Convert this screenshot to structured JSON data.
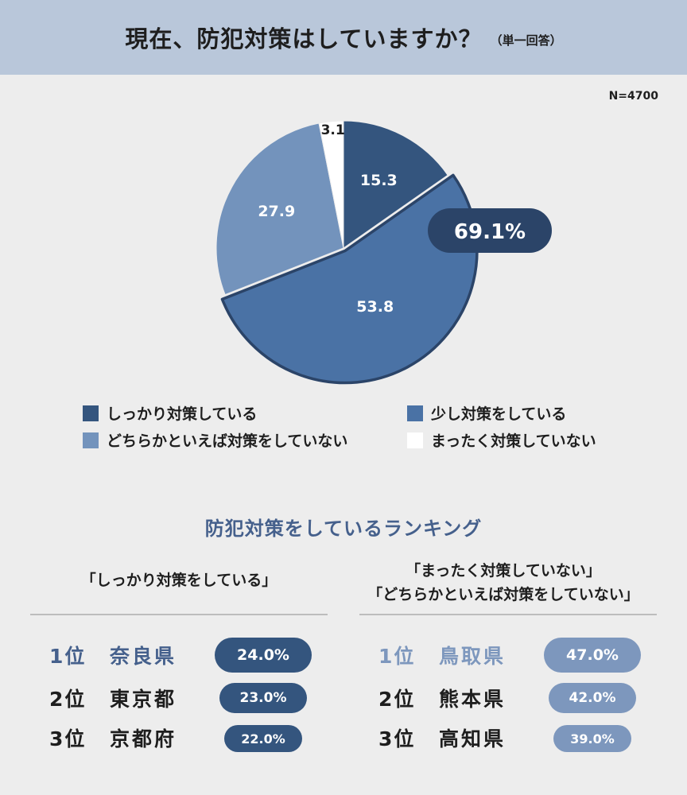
{
  "header": {
    "title": "現在、防犯対策はしていますか？",
    "subtitle": "（単一回答）"
  },
  "sample": "N=4700",
  "chart_data": {
    "type": "pie",
    "title": "現在、防犯対策はしていますか？",
    "subtitle": "（単一回答）",
    "slices": [
      {
        "label": "しっかり対策している",
        "value": 15.3,
        "value_label": "15.3",
        "color": "#34557e"
      },
      {
        "label": "少し対策をしている",
        "value": 53.8,
        "value_label": "53.8",
        "color": "#4a72a5"
      },
      {
        "label": "どちらかといえば対策をしていない",
        "value": 27.9,
        "value_label": "27.9",
        "color": "#7393bc"
      },
      {
        "label": "まったく対策していない",
        "value": 3.1,
        "value_label": "3.1",
        "color": "#ffffff"
      }
    ],
    "callout": {
      "text": "69.1%",
      "color": "#2b4468"
    },
    "start_angle_deg": 0,
    "direction": "clockwise",
    "outline_color": "#2b4468"
  },
  "ranking": {
    "title": "防犯対策をしているランキング",
    "left": {
      "heading": [
        "「しっかり対策をしている」"
      ],
      "accent": "#45608c",
      "pill_color": "#34557e",
      "rows": [
        {
          "rank": "1位",
          "pref": "奈良県",
          "value": "24.0%"
        },
        {
          "rank": "2位",
          "pref": "東京都",
          "value": "23.0%"
        },
        {
          "rank": "3位",
          "pref": "京都府",
          "value": "22.0%"
        }
      ]
    },
    "right": {
      "heading": [
        "「まったく対策していない」",
        "「どちらかといえば対策をしていない」"
      ],
      "accent": "#7d97bd",
      "pill_color": "#7d97bd",
      "rows": [
        {
          "rank": "1位",
          "pref": "鳥取県",
          "value": "47.0%"
        },
        {
          "rank": "2位",
          "pref": "熊本県",
          "value": "42.0%"
        },
        {
          "rank": "3位",
          "pref": "高知県",
          "value": "39.0%"
        }
      ]
    }
  }
}
